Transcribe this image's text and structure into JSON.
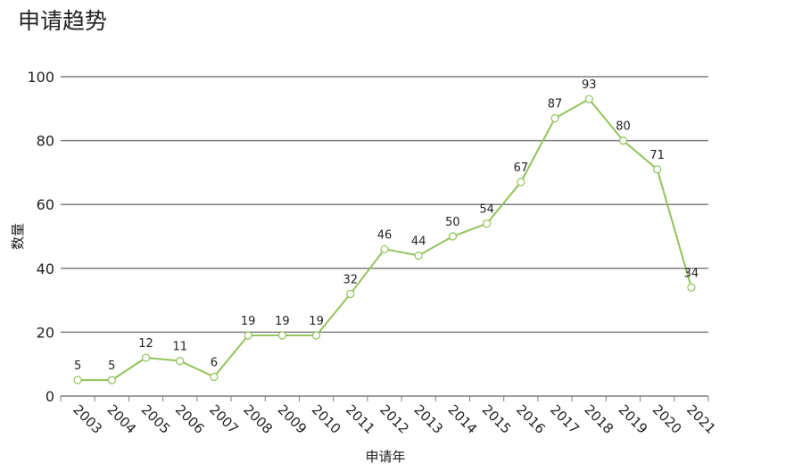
{
  "title": "申请趋势",
  "chart_data": {
    "type": "line",
    "title": "申请趋势",
    "xlabel": "申请年",
    "ylabel": "数量",
    "categories": [
      "2003",
      "2004",
      "2005",
      "2006",
      "2007",
      "2008",
      "2009",
      "2010",
      "2011",
      "2012",
      "2013",
      "2014",
      "2015",
      "2016",
      "2017",
      "2018",
      "2019",
      "2020",
      "2021"
    ],
    "series": [
      {
        "values": [
          5,
          5,
          12,
          11,
          6,
          19,
          19,
          19,
          32,
          46,
          44,
          50,
          54,
          67,
          87,
          93,
          80,
          71,
          34
        ]
      }
    ],
    "ylim": [
      0,
      100
    ],
    "yticks": [
      0,
      20,
      40,
      60,
      80,
      100
    ],
    "grid": true,
    "line_color": "#92c35a",
    "marker_fill": "#ffffff"
  }
}
